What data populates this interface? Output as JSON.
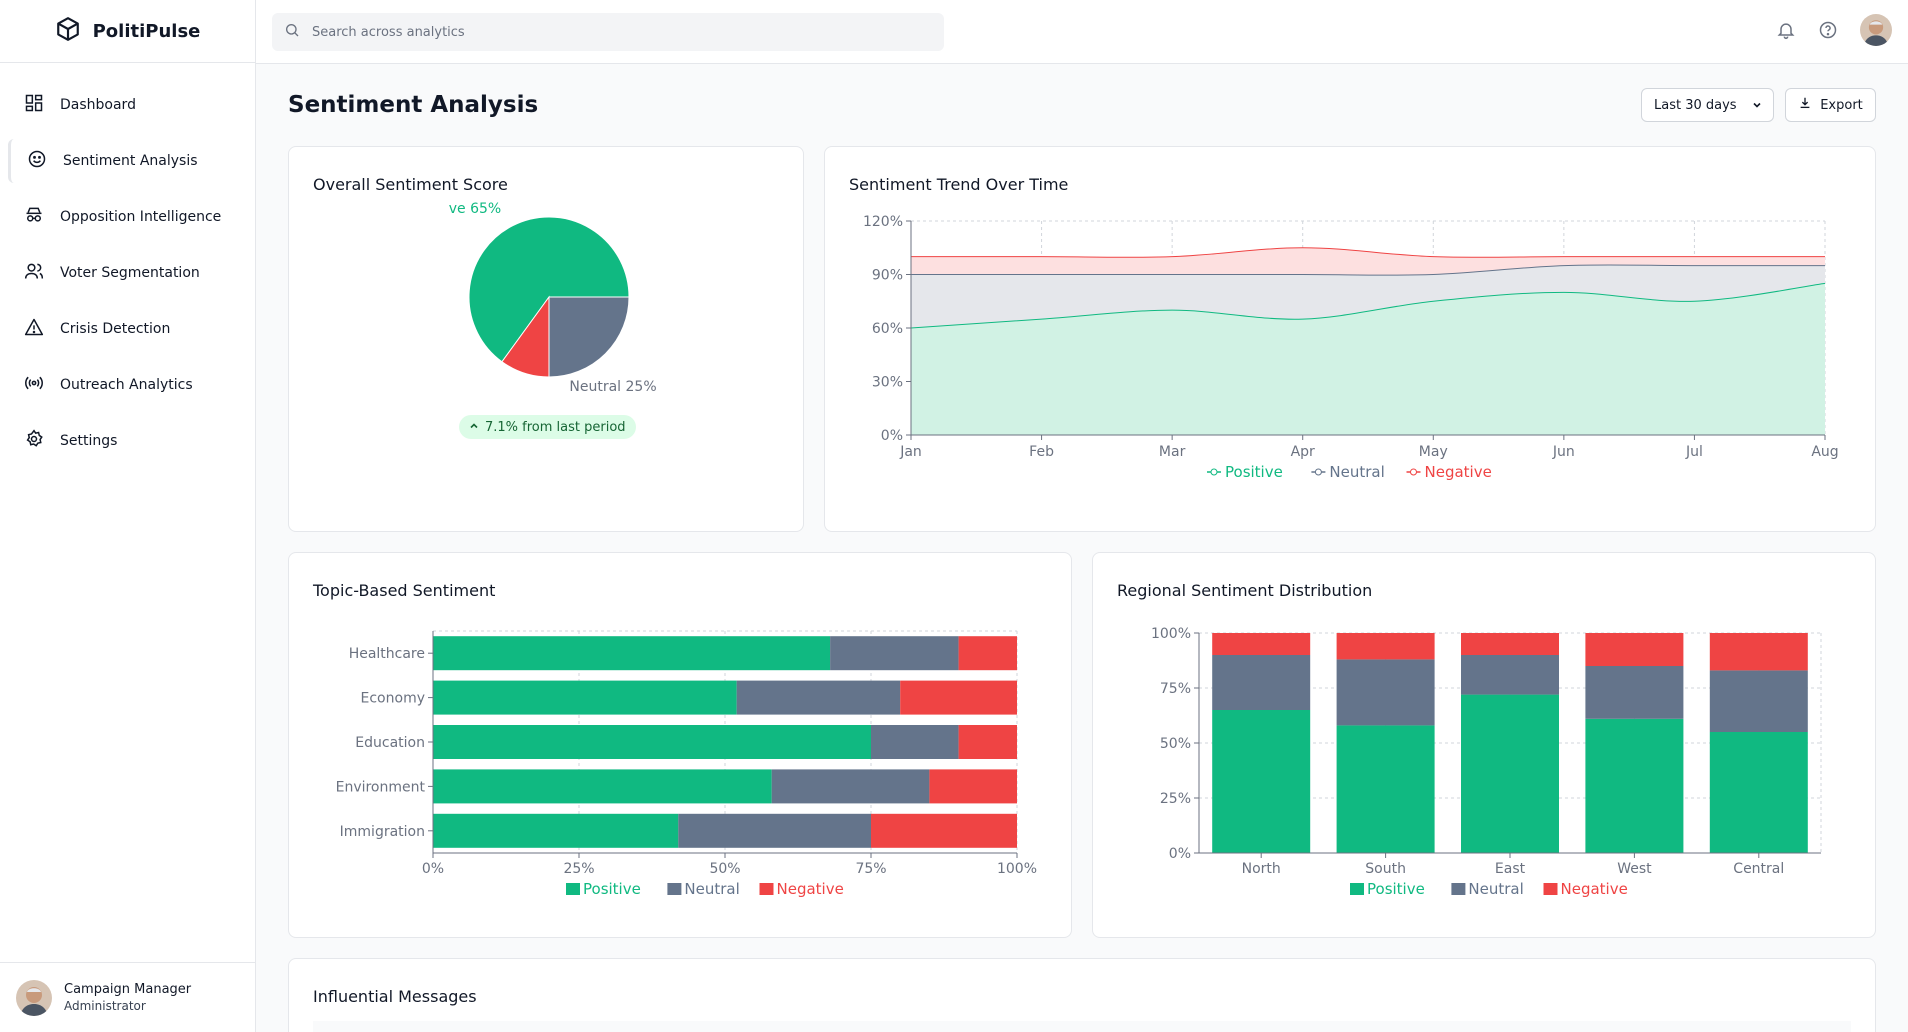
{
  "app": {
    "name": "PolitiPulse"
  },
  "search": {
    "placeholder": "Search across analytics"
  },
  "sidebar": {
    "items": [
      {
        "label": "Dashboard",
        "icon": "dashboard-icon"
      },
      {
        "label": "Sentiment Analysis",
        "icon": "smile-icon",
        "active": true
      },
      {
        "label": "Opposition Intelligence",
        "icon": "spy-icon"
      },
      {
        "label": "Voter Segmentation",
        "icon": "users-icon"
      },
      {
        "label": "Crisis Detection",
        "icon": "warning-icon"
      },
      {
        "label": "Outreach Analytics",
        "icon": "broadcast-icon"
      },
      {
        "label": "Settings",
        "icon": "gear-icon"
      }
    ],
    "user": {
      "name": "Campaign Manager",
      "role": "Administrator"
    }
  },
  "page": {
    "title": "Sentiment Analysis",
    "range": "Last 30 days",
    "export_label": "Export"
  },
  "colors": {
    "positive": "#10b981",
    "neutral": "#64748b",
    "negative": "#ef4444"
  },
  "cards": {
    "overall": {
      "title": "Overall Sentiment Score",
      "change": "7.1% from last period"
    },
    "trend": {
      "title": "Sentiment Trend Over Time"
    },
    "topic": {
      "title": "Topic-Based Sentiment"
    },
    "regional": {
      "title": "Regional Sentiment Distribution"
    },
    "messages": {
      "title": "Influential Messages"
    }
  },
  "chart_data": [
    {
      "type": "pie",
      "labels": [
        "Positive",
        "Neutral",
        "Negative"
      ],
      "values": [
        65,
        25,
        10
      ],
      "visible_labels": [
        "ve 65%",
        "Neutral 25%"
      ]
    },
    {
      "type": "area",
      "title": "Sentiment Trend Over Time",
      "x": [
        "Jan",
        "Feb",
        "Mar",
        "Apr",
        "May",
        "Jun",
        "Jul",
        "Aug"
      ],
      "series": [
        {
          "name": "Positive",
          "values": [
            60,
            65,
            70,
            65,
            75,
            80,
            75,
            85
          ]
        },
        {
          "name": "Neutral",
          "values": [
            90,
            90,
            90,
            90,
            90,
            95,
            95,
            95
          ]
        },
        {
          "name": "Negative",
          "values": [
            100,
            100,
            100,
            105,
            100,
            100,
            100,
            100
          ]
        }
      ],
      "yticks": [
        "0%",
        "30%",
        "60%",
        "90%",
        "120%"
      ],
      "ylim": [
        0,
        120
      ],
      "legend": "bottom"
    },
    {
      "type": "bar",
      "orientation": "horizontal",
      "stacked": true,
      "title": "Topic-Based Sentiment",
      "categories": [
        "Healthcare",
        "Economy",
        "Education",
        "Environment",
        "Immigration"
      ],
      "series": [
        {
          "name": "Positive",
          "values": [
            68,
            52,
            75,
            58,
            42
          ]
        },
        {
          "name": "Neutral",
          "values": [
            22,
            28,
            15,
            27,
            33
          ]
        },
        {
          "name": "Negative",
          "values": [
            10,
            20,
            10,
            15,
            25
          ]
        }
      ],
      "xticks": [
        "0%",
        "25%",
        "50%",
        "75%",
        "100%"
      ],
      "xlim": [
        0,
        100
      ],
      "legend": "bottom"
    },
    {
      "type": "bar",
      "stacked": true,
      "title": "Regional Sentiment Distribution",
      "categories": [
        "North",
        "South",
        "East",
        "West",
        "Central"
      ],
      "series": [
        {
          "name": "Positive",
          "values": [
            65,
            58,
            72,
            61,
            55
          ]
        },
        {
          "name": "Neutral",
          "values": [
            25,
            30,
            18,
            24,
            28
          ]
        },
        {
          "name": "Negative",
          "values": [
            10,
            12,
            10,
            15,
            17
          ]
        }
      ],
      "yticks": [
        "0%",
        "25%",
        "50%",
        "75%",
        "100%"
      ],
      "ylim": [
        0,
        100
      ],
      "legend": "bottom"
    }
  ]
}
